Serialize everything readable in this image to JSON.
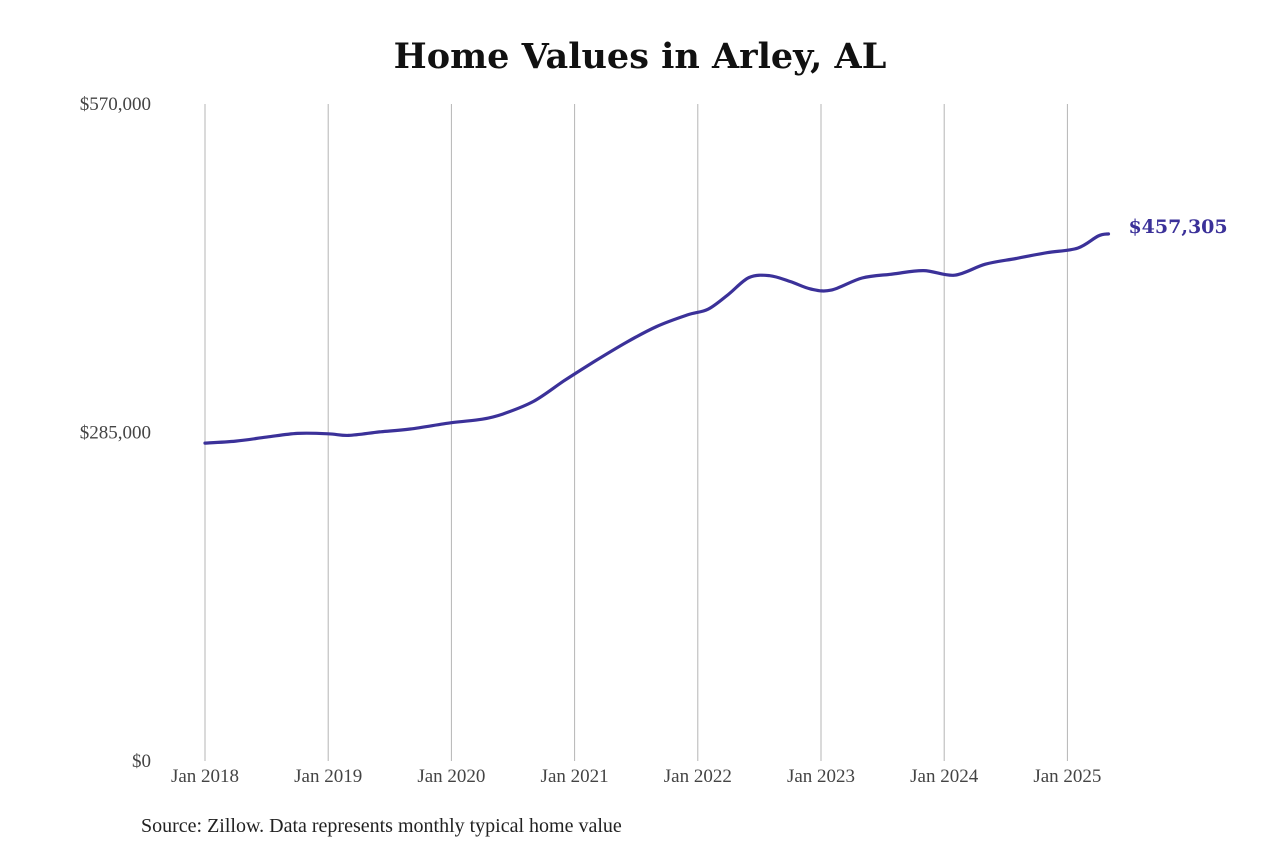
{
  "chart_data": {
    "type": "line",
    "title": "Home Values in Arley, AL",
    "xlabel": "",
    "ylabel": "",
    "ylim": [
      0,
      570000
    ],
    "yticks": [
      {
        "value": 0,
        "label": "$0"
      },
      {
        "value": 285000,
        "label": "$285,000"
      },
      {
        "value": 570000,
        "label": "$570,000"
      }
    ],
    "xticks": [
      {
        "value": "2018-01",
        "label": "Jan 2018"
      },
      {
        "value": "2019-01",
        "label": "Jan 2019"
      },
      {
        "value": "2020-01",
        "label": "Jan 2020"
      },
      {
        "value": "2021-01",
        "label": "Jan 2021"
      },
      {
        "value": "2022-01",
        "label": "Jan 2022"
      },
      {
        "value": "2023-01",
        "label": "Jan 2023"
      },
      {
        "value": "2024-01",
        "label": "Jan 2024"
      },
      {
        "value": "2025-01",
        "label": "Jan 2025"
      }
    ],
    "grid": {
      "vertical": true,
      "horizontal": false
    },
    "legend": "none",
    "line_color": "#3b3199",
    "series": [
      {
        "values": [
          {
            "x": "2018-01",
            "y": 275800
          },
          {
            "x": "2018-04",
            "y": 277500
          },
          {
            "x": "2018-07",
            "y": 281000
          },
          {
            "x": "2018-10",
            "y": 284200
          },
          {
            "x": "2019-01",
            "y": 283900
          },
          {
            "x": "2019-03",
            "y": 282500
          },
          {
            "x": "2019-06",
            "y": 285500
          },
          {
            "x": "2019-09",
            "y": 288000
          },
          {
            "x": "2020-01",
            "y": 293500
          },
          {
            "x": "2020-04",
            "y": 296500
          },
          {
            "x": "2020-06",
            "y": 301000
          },
          {
            "x": "2020-09",
            "y": 312000
          },
          {
            "x": "2020-12",
            "y": 330000
          },
          {
            "x": "2021-03",
            "y": 347000
          },
          {
            "x": "2021-06",
            "y": 363000
          },
          {
            "x": "2021-09",
            "y": 377000
          },
          {
            "x": "2021-12",
            "y": 387000
          },
          {
            "x": "2022-02",
            "y": 392000
          },
          {
            "x": "2022-04",
            "y": 405000
          },
          {
            "x": "2022-06",
            "y": 419500
          },
          {
            "x": "2022-08",
            "y": 421000
          },
          {
            "x": "2022-10",
            "y": 416000
          },
          {
            "x": "2022-12",
            "y": 409500
          },
          {
            "x": "2023-02",
            "y": 408500
          },
          {
            "x": "2023-05",
            "y": 419000
          },
          {
            "x": "2023-08",
            "y": 422500
          },
          {
            "x": "2023-11",
            "y": 425500
          },
          {
            "x": "2024-02",
            "y": 421500
          },
          {
            "x": "2024-05",
            "y": 431000
          },
          {
            "x": "2024-08",
            "y": 436000
          },
          {
            "x": "2024-11",
            "y": 441000
          },
          {
            "x": "2025-02",
            "y": 445000
          },
          {
            "x": "2025-04",
            "y": 455500
          },
          {
            "x": "2025-05",
            "y": 457305
          }
        ]
      }
    ],
    "end_label": "$457,305"
  },
  "source_note": "Source: Zillow. Data represents monthly typical home value"
}
